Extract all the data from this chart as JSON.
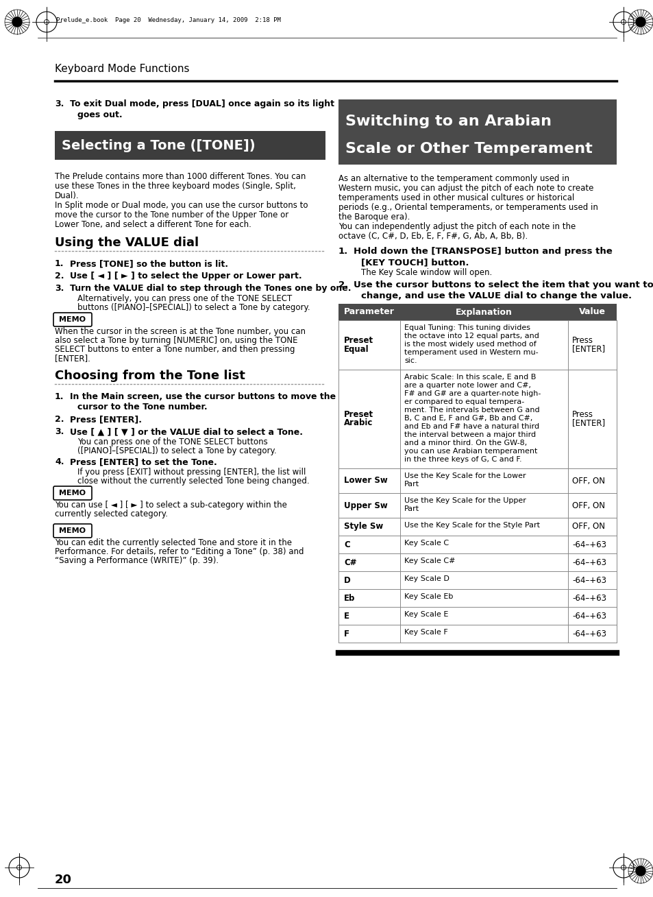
{
  "page_header": "Keyboard Mode Functions",
  "page_num": "20",
  "header_file": "Prelude_e.book  Page 20  Wednesday, January 14, 2009  2:18 PM",
  "bg_color": "#ffffff",
  "left_col": {
    "selecting_tone_title": "Selecting a Tone ([TONE])",
    "selecting_tone_bg": "#3d3d3d",
    "selecting_tone_fg": "#ffffff",
    "value_dial_title": "Using the VALUE dial",
    "tone_list_title": "Choosing from the Tone list",
    "memo1_label": "MEMO",
    "memo2_label": "MEMO",
    "memo3_label": "MEMO"
  },
  "right_col": {
    "arabian_title_line1": "Switching to an Arabian",
    "arabian_title_line2": "Scale or Other Temperament",
    "arabian_title_bg": "#4a4a4a",
    "arabian_title_fg": "#ffffff",
    "table_header": [
      "Parameter",
      "Explanation",
      "Value"
    ],
    "table_header_bg": "#4a4a4a",
    "table_header_fg": "#ffffff",
    "table_rows": [
      {
        "param": "Preset\nEqual",
        "param_bold": true,
        "explanation": "Equal Tuning: This tuning divides\nthe octave into 12 equal parts, and\nis the most widely used method of\ntemperament used in Western mu-\nsic.",
        "value": "Press\n[ENTER]"
      },
      {
        "param": "Preset\nArabic",
        "param_bold": true,
        "explanation": "Arabic Scale: In this scale, E and B\nare a quarter note lower and C#,\nF# and G# are a quarter-note high-\ner compared to equal tempera-\nment. The intervals between G and\nB, C and E, F and G#, Bb and C#,\nand Eb and F# have a natural third\nthe interval between a major third\nand a minor third. On the GW-8,\nyou can use Arabian temperament\nin the three keys of G, C and F.",
        "value": "Press\n[ENTER]"
      },
      {
        "param": "Lower Sw",
        "param_bold": true,
        "explanation": "Use the Key Scale for the Lower\nPart",
        "value": "OFF, ON"
      },
      {
        "param": "Upper Sw",
        "param_bold": true,
        "explanation": "Use the Key Scale for the Upper\nPart",
        "value": "OFF, ON"
      },
      {
        "param": "Style Sw",
        "param_bold": true,
        "explanation": "Use the Key Scale for the Style Part",
        "value": "OFF, ON"
      },
      {
        "param": "C",
        "param_bold": true,
        "explanation": "Key Scale C",
        "value": "-64–+63"
      },
      {
        "param": "C#",
        "param_bold": true,
        "explanation": "Key Scale C#",
        "value": "-64–+63"
      },
      {
        "param": "D",
        "param_bold": true,
        "explanation": "Key Scale D",
        "value": "-64–+63"
      },
      {
        "param": "Eb",
        "param_bold": true,
        "explanation": "Key Scale Eb",
        "value": "-64–+63"
      },
      {
        "param": "E",
        "param_bold": true,
        "explanation": "Key Scale E",
        "value": "-64–+63"
      },
      {
        "param": "F",
        "param_bold": true,
        "explanation": "Key Scale F",
        "value": "-64–+63"
      }
    ]
  }
}
